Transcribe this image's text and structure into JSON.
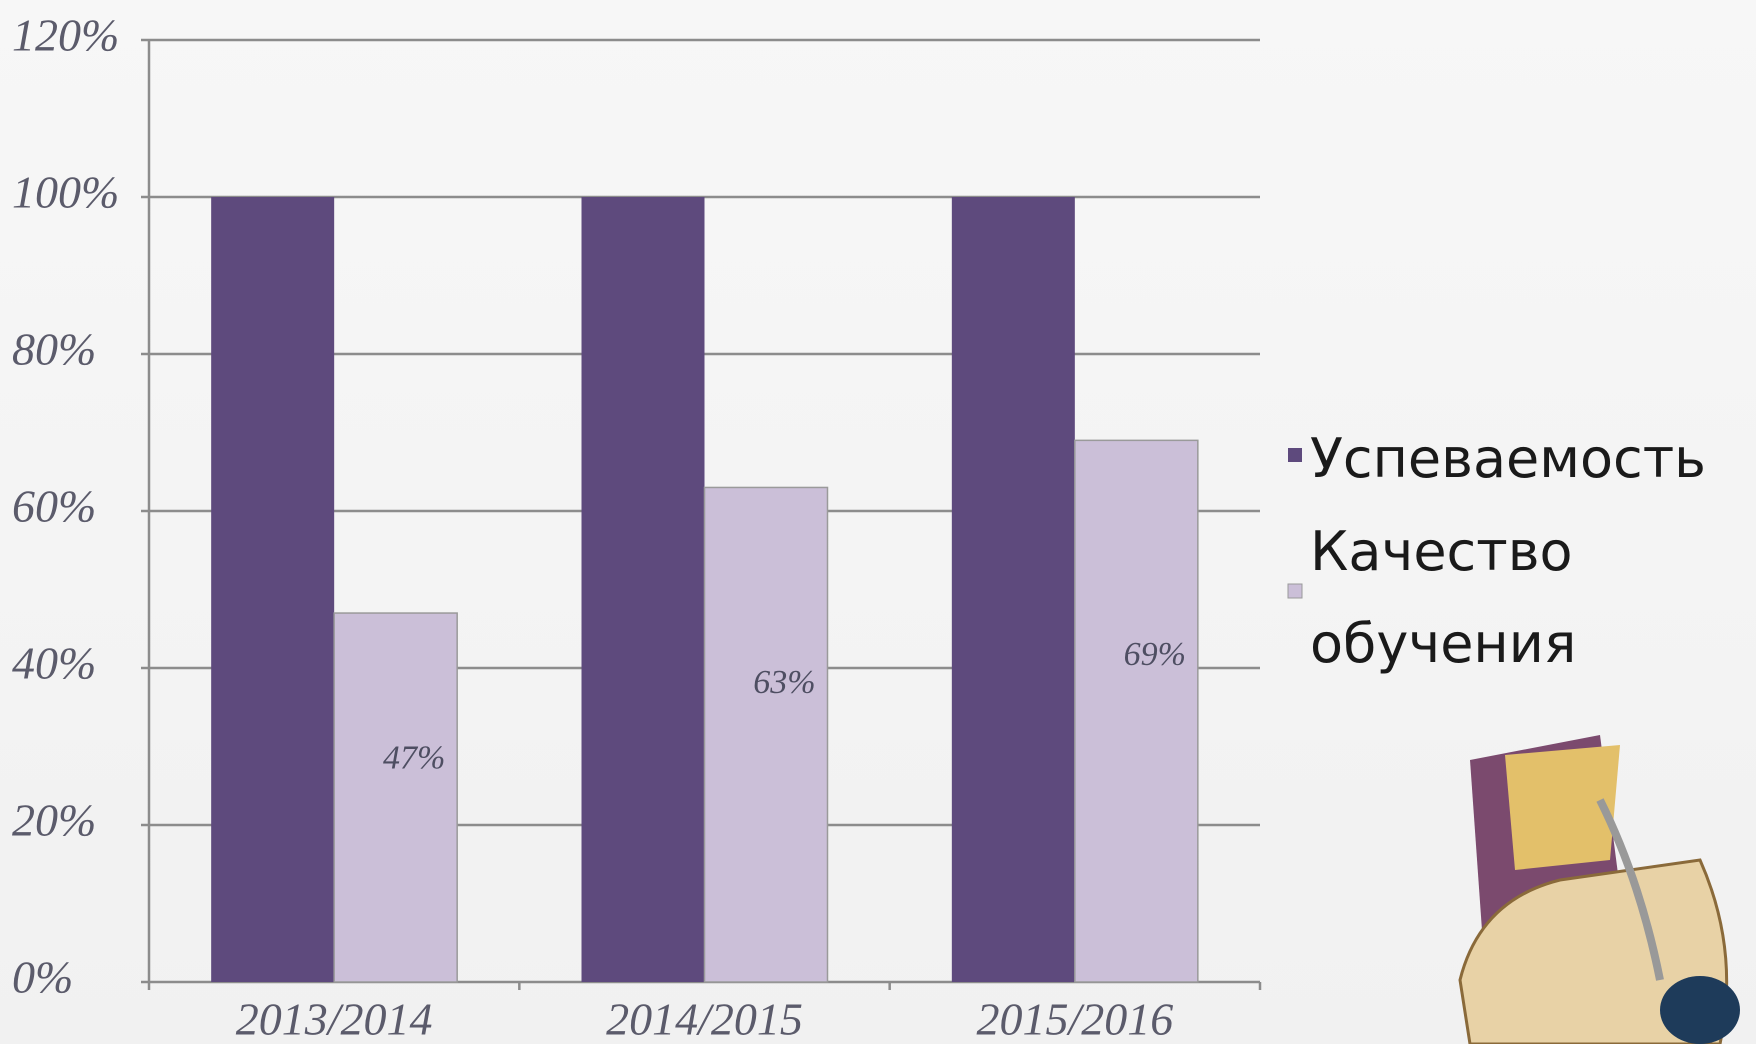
{
  "chart_data": {
    "type": "bar",
    "categories": [
      "2013/2014",
      "2014/2015",
      "2015/2016"
    ],
    "series": [
      {
        "name": "Успеваемость",
        "color": "#5e4a7d",
        "values": [
          100,
          100,
          100
        ]
      },
      {
        "name": "Качество обучения",
        "color": "#cbbfd8",
        "values": [
          47,
          63,
          69
        ],
        "value_labels": [
          "47%",
          "63%",
          "69%"
        ]
      }
    ],
    "ylim": [
      0,
      120
    ],
    "yticks": [
      {
        "value": 0,
        "label": "0%"
      },
      {
        "value": 20,
        "label": "20%"
      },
      {
        "value": 40,
        "label": "40%"
      },
      {
        "value": 60,
        "label": "60%"
      },
      {
        "value": 80,
        "label": "80%"
      },
      {
        "value": 100,
        "label": "100%"
      },
      {
        "value": 120,
        "label": "120%"
      }
    ],
    "grid": true,
    "legend": "right"
  }
}
